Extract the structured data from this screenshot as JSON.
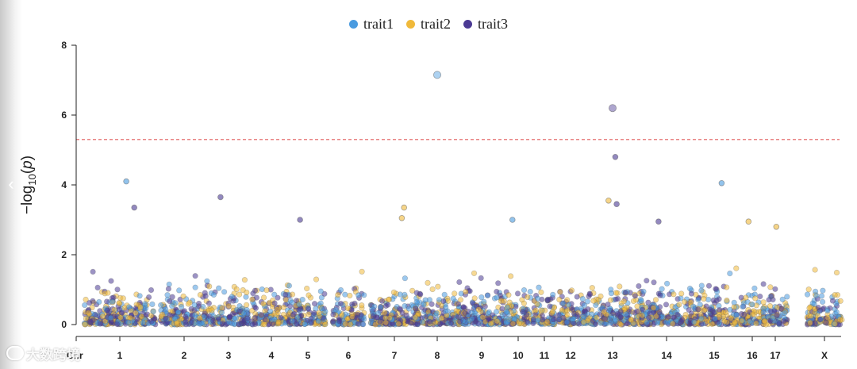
{
  "chart_data": {
    "type": "scatter",
    "subtype": "manhattan",
    "ylabel": "−log10(p)",
    "ylim": [
      0,
      8
    ],
    "yticks": [
      0,
      2,
      4,
      6,
      8
    ],
    "xlabel": "Chr",
    "chromosomes": [
      "1",
      "2",
      "3",
      "4",
      "5",
      "6",
      "7",
      "8",
      "9",
      "10",
      "11",
      "12",
      "13",
      "14",
      "15",
      "16",
      "17",
      "X"
    ],
    "threshold": 5.3,
    "threshold_color": "#e05a5a",
    "series": [
      {
        "name": "trait1",
        "color": "#4a9be0"
      },
      {
        "name": "trait2",
        "color": "#f0b93a"
      },
      {
        "name": "trait3",
        "color": "#4b3a94"
      }
    ],
    "top_hits": [
      {
        "chr": "1",
        "series": "trait1",
        "y": 4.1
      },
      {
        "chr": "1",
        "series": "trait3",
        "y": 3.35
      },
      {
        "chr": "3",
        "series": "trait3",
        "y": 3.65
      },
      {
        "chr": "5",
        "series": "trait3",
        "y": 3.0
      },
      {
        "chr": "7",
        "series": "trait2",
        "y": 3.05
      },
      {
        "chr": "7",
        "series": "trait2",
        "y": 3.35
      },
      {
        "chr": "8",
        "series": "trait1",
        "y": 7.15
      },
      {
        "chr": "10",
        "series": "trait1",
        "y": 3.0
      },
      {
        "chr": "13",
        "series": "trait3",
        "y": 6.2
      },
      {
        "chr": "13",
        "series": "trait3",
        "y": 4.8
      },
      {
        "chr": "13",
        "series": "trait2",
        "y": 3.55
      },
      {
        "chr": "13",
        "series": "trait3",
        "y": 3.45
      },
      {
        "chr": "14",
        "series": "trait3",
        "y": 2.95
      },
      {
        "chr": "15",
        "series": "trait1",
        "y": 4.05
      },
      {
        "chr": "16",
        "series": "trait2",
        "y": 2.95
      },
      {
        "chr": "17",
        "series": "trait2",
        "y": 2.8
      }
    ],
    "grid": false,
    "legend_position": "top-center"
  },
  "watermark": {
    "text": "大数跨境"
  },
  "icons": {
    "back": "chevron-left-icon"
  }
}
